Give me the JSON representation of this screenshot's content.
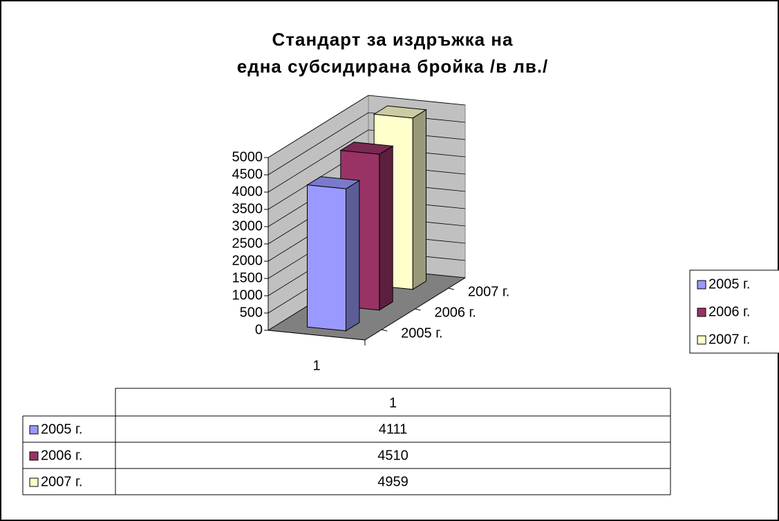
{
  "chart_data": {
    "type": "bar",
    "title": [
      "Стандарт за издръжка на",
      "една субсидирана бройка  /в лв./"
    ],
    "categories": [
      "1"
    ],
    "series": [
      {
        "name": "2005 г.",
        "color": "#9999ff",
        "values": [
          4111
        ]
      },
      {
        "name": "2006 г.",
        "color": "#993366",
        "values": [
          4510
        ]
      },
      {
        "name": "2007 г.",
        "color": "#ffffcc",
        "values": [
          4959
        ]
      }
    ],
    "ylim": [
      0,
      5000
    ],
    "yticks": [
      0,
      500,
      1000,
      1500,
      2000,
      2500,
      3000,
      3500,
      4000,
      4500,
      5000
    ],
    "grid": true,
    "legend": "right",
    "data_table": true
  }
}
